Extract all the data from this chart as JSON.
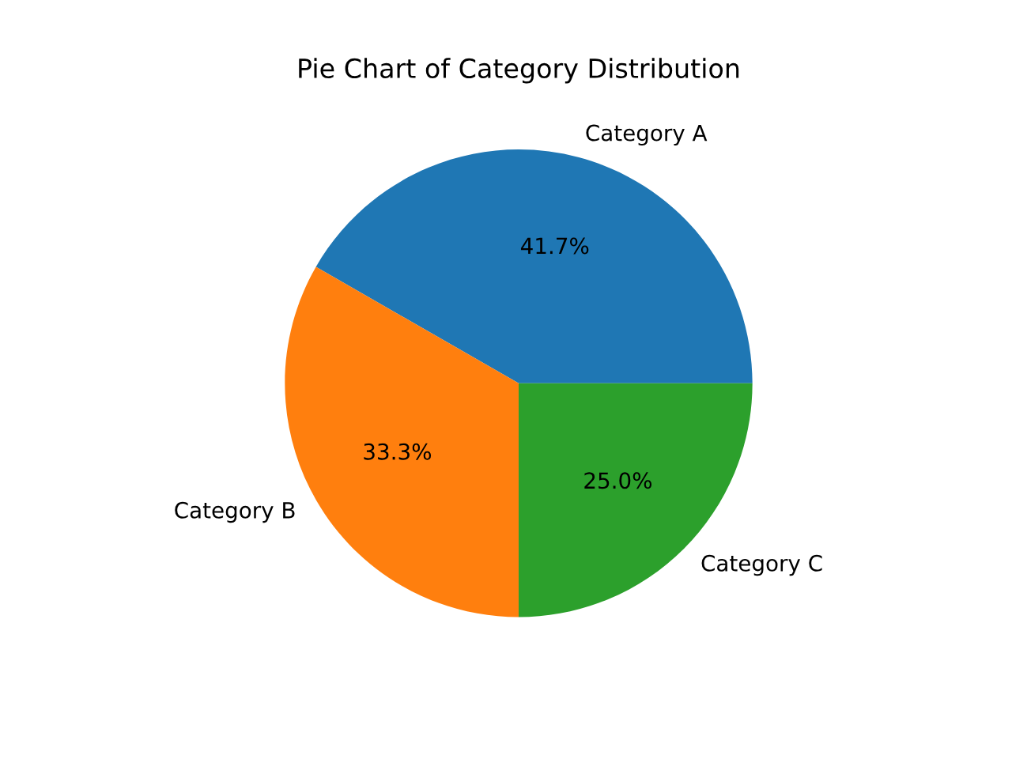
{
  "chart_data": {
    "type": "pie",
    "title": "Pie Chart of Category Distribution",
    "categories": [
      "Category A",
      "Category B",
      "Category C"
    ],
    "values": [
      41.7,
      33.3,
      25.0
    ],
    "value_labels": [
      "41.7%",
      "33.3%",
      "25.0%"
    ],
    "colors": [
      "#1f77b4",
      "#ff7f0e",
      "#2ca02c"
    ]
  }
}
